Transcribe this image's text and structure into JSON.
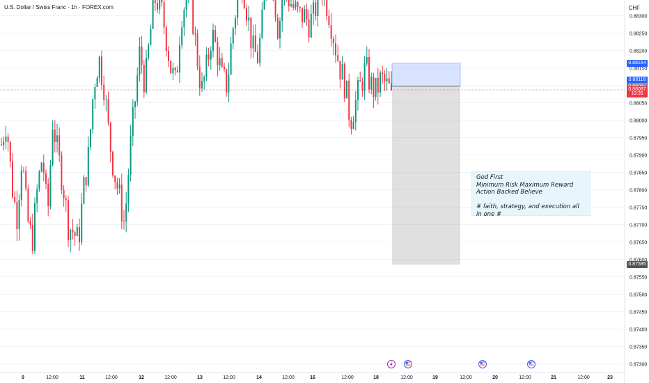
{
  "header": {
    "title": "U.S. Dollar / Swiss Franc · 1h · FOREX.com",
    "currency": "CHF"
  },
  "price_axis": {
    "ticks": [
      "0.88300",
      "0.88250",
      "0.88200",
      "0.88150",
      "0.88100",
      "0.88050",
      "0.88000",
      "0.87950",
      "0.87900",
      "0.87850",
      "0.87800",
      "0.87750",
      "0.87700",
      "0.87650",
      "0.87600",
      "0.87550",
      "0.87500",
      "0.87450",
      "0.87400",
      "0.87350",
      "0.87300"
    ],
    "tags": [
      {
        "label": "0.88164",
        "price": 0.88164,
        "color": "#2962ff"
      },
      {
        "label": "0.88116",
        "price": 0.88116,
        "color": "#2962ff"
      },
      {
        "label": "0.88097",
        "price": 0.88097,
        "color": "#787b86"
      },
      {
        "label": "0.88087",
        "price": 0.88087,
        "color": "#f23645"
      },
      {
        "label": "19:35",
        "price": 0.88075,
        "color": "#f23645"
      },
      {
        "label": "0.87585",
        "price": 0.87585,
        "color": "#555555"
      }
    ]
  },
  "time_axis": {
    "labels": [
      "9",
      "12:00",
      "11",
      "12:00",
      "12",
      "12:00",
      "13",
      "12:00",
      "14",
      "12:00",
      "16",
      "12:00",
      "18",
      "12:00",
      "19",
      "12:00",
      "20",
      "12:00",
      "21",
      "12:00",
      "23"
    ]
  },
  "annotation": {
    "lines": [
      "God First",
      "Minimum Risk Maximum Reward",
      "Action Backed Believe",
      "",
      "# faith, strategy, and execution all in one #"
    ]
  },
  "events": [
    {
      "icon": "lightning-icon",
      "color": "#9c27b0"
    },
    {
      "icon": "us-flag-icon",
      "color": "#2962ff"
    },
    {
      "icon": "us-flag-icon",
      "color": "#2962ff"
    },
    {
      "icon": "us-flag-icon",
      "color": "#2962ff"
    }
  ],
  "chart_data": {
    "type": "candlestick",
    "symbol": "U.S. Dollar / Swiss Franc",
    "interval": "1h",
    "source": "FOREX.com",
    "y_range": [
      0.8729,
      0.8834
    ],
    "x_labels": [
      "9",
      "12:00",
      "11",
      "12:00",
      "12",
      "12:00",
      "13",
      "12:00",
      "14",
      "12:00",
      "16",
      "12:00",
      "18",
      "12:00",
      "19",
      "12:00",
      "20",
      "12:00",
      "21",
      "12:00",
      "23"
    ],
    "current_price": 0.88087,
    "position": {
      "type": "short",
      "entry": 0.88097,
      "stop_loss": 0.88164,
      "take_profit": 0.87585
    },
    "close_path": [
      0.8793,
      0.88,
      0.8782,
      0.8772,
      0.879,
      0.8772,
      0.8765,
      0.878,
      0.879,
      0.8772,
      0.88,
      0.879,
      0.8782,
      0.877,
      0.8768,
      0.8765,
      0.878,
      0.879,
      0.881,
      0.8818,
      0.881,
      0.8795,
      0.8785,
      0.8778,
      0.877,
      0.879,
      0.8805,
      0.882,
      0.881,
      0.8825,
      0.8835,
      0.8833,
      0.8825,
      0.8815,
      0.881,
      0.883,
      0.8835,
      0.8833,
      0.882,
      0.8808,
      0.8815,
      0.8825,
      0.882,
      0.8812,
      0.881,
      0.8825,
      0.8835,
      0.884,
      0.883,
      0.882,
      0.8818,
      0.883,
      0.8845,
      0.8838,
      0.8825,
      0.884,
      0.8835,
      0.8832,
      0.883,
      0.883,
      0.8828,
      0.883,
      0.884,
      0.8836,
      0.883,
      0.8822,
      0.8815,
      0.881,
      0.88,
      0.8805,
      0.881,
      0.8815,
      0.881,
      0.8808,
      0.8812,
      0.881,
      0.8808
    ]
  }
}
